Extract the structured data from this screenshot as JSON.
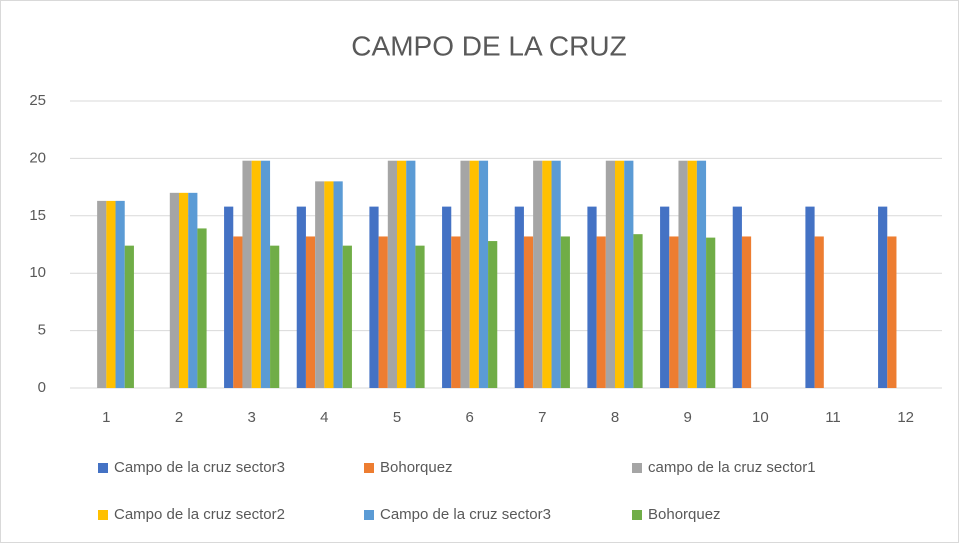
{
  "chart_data": {
    "type": "bar",
    "title": "CAMPO DE LA CRUZ",
    "categories": [
      "1",
      "2",
      "3",
      "4",
      "5",
      "6",
      "7",
      "8",
      "9",
      "10",
      "11",
      "12"
    ],
    "series": [
      {
        "name": "Campo de la cruz sector3",
        "color": "#4472c4",
        "values": [
          null,
          null,
          15.8,
          15.8,
          15.8,
          15.8,
          15.8,
          15.8,
          15.8,
          15.8,
          15.8,
          15.8
        ]
      },
      {
        "name": "Bohorquez",
        "color": "#ed7d31",
        "values": [
          null,
          null,
          13.2,
          13.2,
          13.2,
          13.2,
          13.2,
          13.2,
          13.2,
          13.2,
          13.2,
          13.2
        ]
      },
      {
        "name": "campo de la cruz sector1",
        "color": "#a5a5a5",
        "values": [
          16.3,
          17.0,
          19.8,
          18.0,
          19.8,
          19.8,
          19.8,
          19.8,
          19.8,
          null,
          null,
          null
        ]
      },
      {
        "name": "Campo de la cruz sector2",
        "color": "#ffc000",
        "values": [
          16.3,
          17.0,
          19.8,
          18.0,
          19.8,
          19.8,
          19.8,
          19.8,
          19.8,
          null,
          null,
          null
        ]
      },
      {
        "name": "Campo de la cruz sector3",
        "color": "#5b9bd5",
        "values": [
          16.3,
          17.0,
          19.8,
          18.0,
          19.8,
          19.8,
          19.8,
          19.8,
          19.8,
          null,
          null,
          null
        ]
      },
      {
        "name": "Bohorquez",
        "color": "#70ad47",
        "values": [
          12.4,
          13.9,
          12.4,
          12.4,
          12.4,
          12.8,
          13.2,
          13.4,
          13.1,
          null,
          null,
          null
        ]
      }
    ],
    "ylim": [
      0,
      25
    ],
    "yticks": [
      0,
      5,
      10,
      15,
      20,
      25
    ],
    "grid": true
  }
}
